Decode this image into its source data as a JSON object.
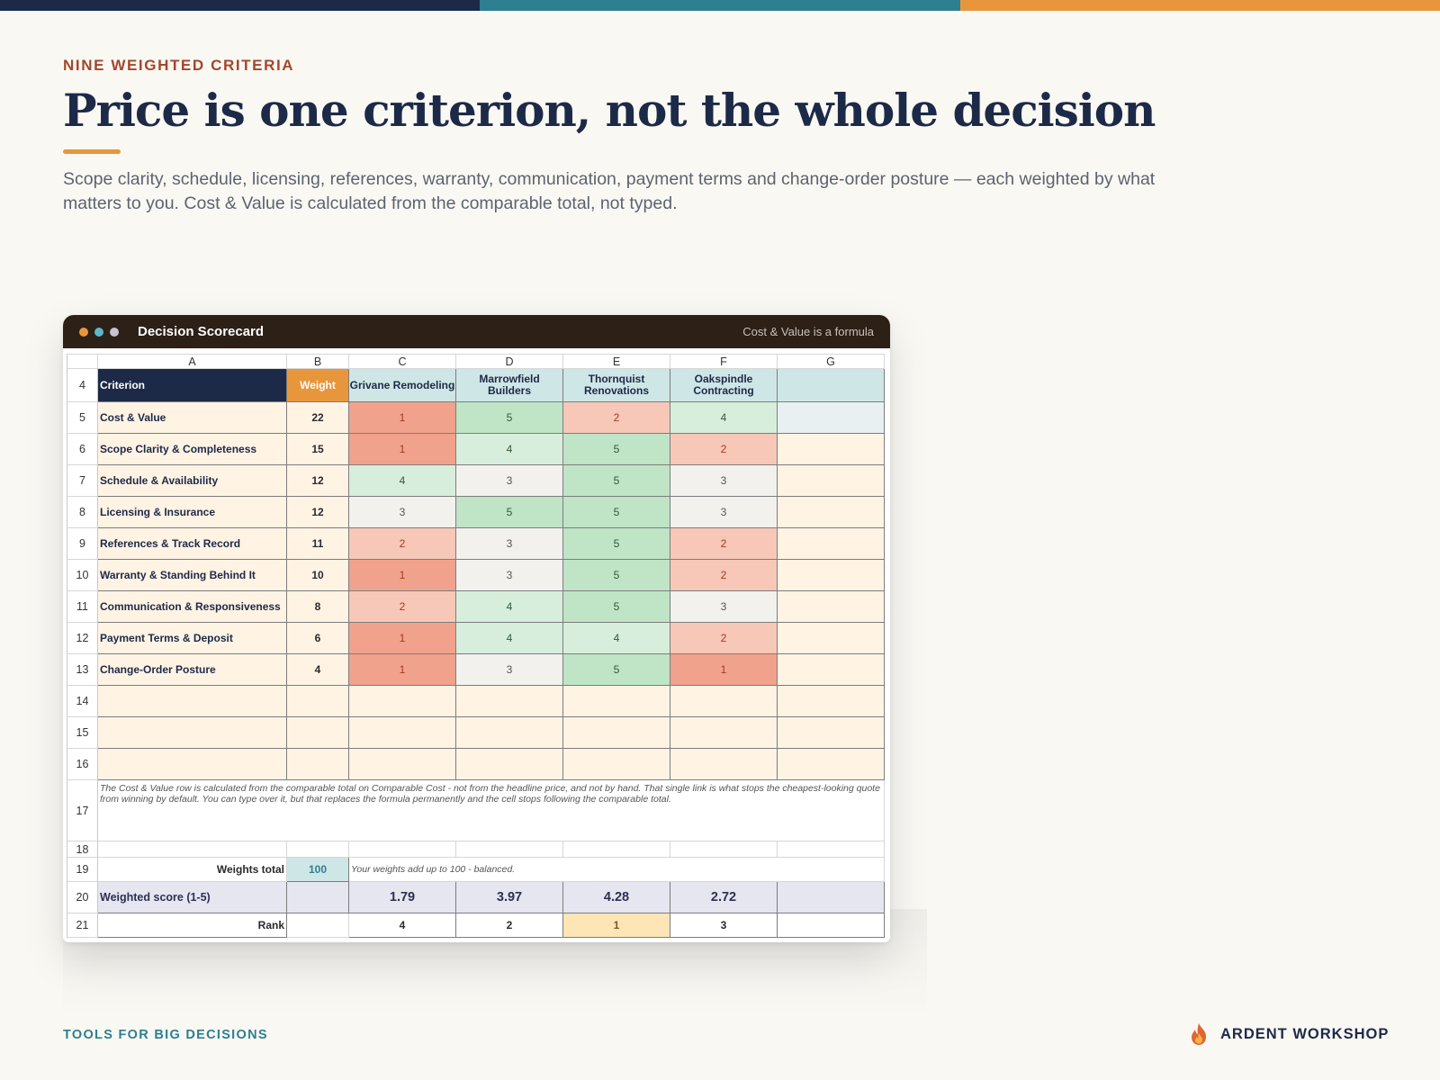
{
  "header": {
    "eyebrow": "NINE WEIGHTED CRITERIA",
    "title": "Price is one criterion, not the whole decision",
    "subtitle": "Scope clarity, schedule, licensing, references, warranty, communication, payment terms and change-order posture — each weighted by what matters to you. Cost & Value is calculated from the comparable total, not typed."
  },
  "window": {
    "title": "Decision Scorecard",
    "note": "Cost & Value is a formula"
  },
  "sheet": {
    "columns": [
      "A",
      "B",
      "C",
      "D",
      "E",
      "F",
      "G"
    ],
    "header_row": {
      "num": "4",
      "criterion": "Criterion",
      "weight": "Weight",
      "vendors": [
        "Grivane Remodeling",
        "Marrowfield Builders",
        "Thornquist Renovations",
        "Oakspindle Contracting"
      ]
    },
    "criteria": [
      {
        "num": "5",
        "name": "Cost & Value",
        "weight": "22",
        "scores": [
          "1",
          "5",
          "2",
          "4"
        ]
      },
      {
        "num": "6",
        "name": "Scope Clarity & Completeness",
        "weight": "15",
        "scores": [
          "1",
          "4",
          "5",
          "2"
        ]
      },
      {
        "num": "7",
        "name": "Schedule & Availability",
        "weight": "12",
        "scores": [
          "4",
          "3",
          "5",
          "3"
        ]
      },
      {
        "num": "8",
        "name": "Licensing & Insurance",
        "weight": "12",
        "scores": [
          "3",
          "5",
          "5",
          "3"
        ]
      },
      {
        "num": "9",
        "name": "References & Track Record",
        "weight": "11",
        "scores": [
          "2",
          "3",
          "5",
          "2"
        ]
      },
      {
        "num": "10",
        "name": "Warranty & Standing Behind It",
        "weight": "10",
        "scores": [
          "1",
          "3",
          "5",
          "2"
        ]
      },
      {
        "num": "11",
        "name": "Communication & Responsiveness",
        "weight": "8",
        "scores": [
          "2",
          "4",
          "5",
          "3"
        ]
      },
      {
        "num": "12",
        "name": "Payment Terms & Deposit",
        "weight": "6",
        "scores": [
          "1",
          "4",
          "4",
          "2"
        ]
      },
      {
        "num": "13",
        "name": "Change-Order Posture",
        "weight": "4",
        "scores": [
          "1",
          "3",
          "5",
          "1"
        ]
      }
    ],
    "empty_rows": [
      "14",
      "15",
      "16"
    ],
    "note_row": {
      "num": "17",
      "text": "The Cost & Value row is calculated from the comparable total on Comparable Cost - not from the headline price, and not by hand. That single link is what stops the cheapest-looking quote from winning by default. You can type over it, but that replaces the formula permanently and the cell stops following the comparable total."
    },
    "blank_row": "18",
    "weights_row": {
      "num": "19",
      "label": "Weights total",
      "value": "100",
      "note": "Your weights add up to 100 - balanced."
    },
    "score_row": {
      "num": "20",
      "label": "Weighted score (1-5)",
      "values": [
        "1.79",
        "3.97",
        "4.28",
        "2.72"
      ]
    },
    "rank_row": {
      "num": "21",
      "label": "Rank",
      "values": [
        "4",
        "2",
        "1",
        "3"
      ]
    }
  },
  "footer": {
    "left": "TOOLS FOR BIG DECISIONS",
    "brand": "ARDENT WORKSHOP",
    "brand_icon": "flame-icon"
  },
  "colors": {
    "navy": "#1c2a48",
    "teal": "#2d7f91",
    "orange": "#e8963c",
    "rust": "#a4462a"
  }
}
